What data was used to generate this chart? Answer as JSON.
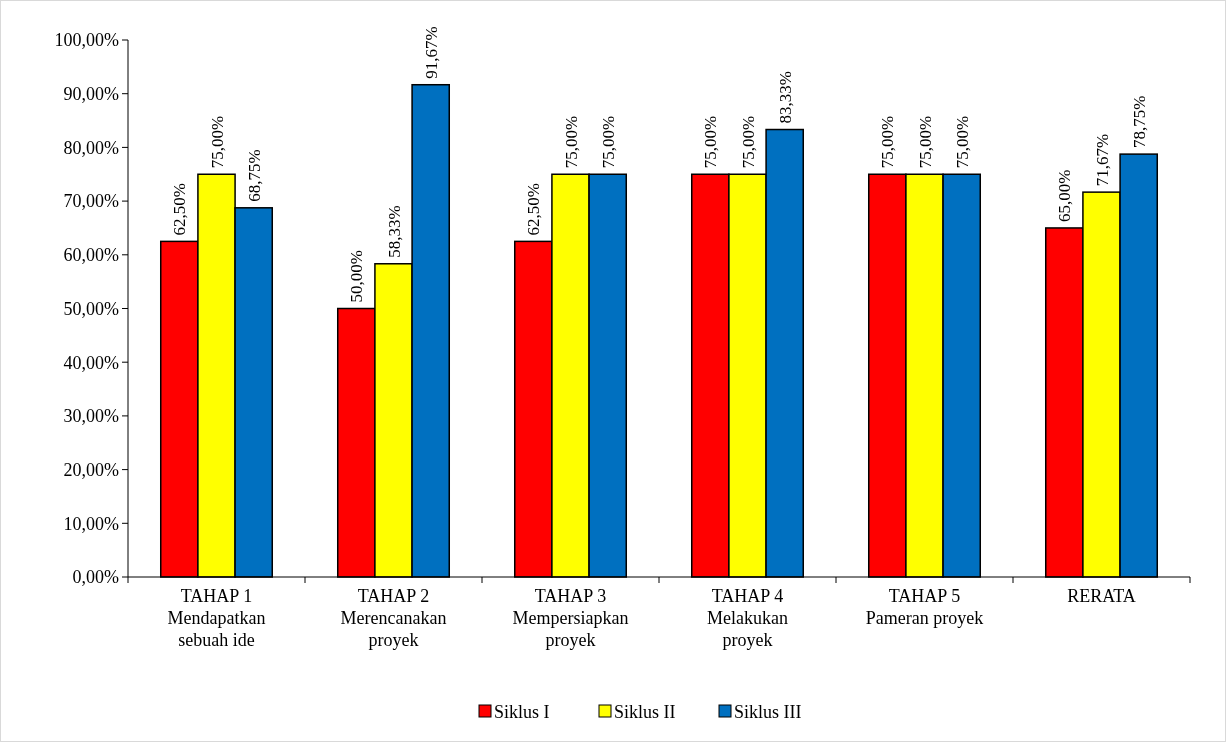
{
  "chart_data": {
    "type": "bar",
    "categories": [
      "TAHAP 1\nMendapatkan\nsebuah ide",
      "TAHAP 2\nMerencanakan\nproyek",
      "TAHAP 3\nMempersiapkan\nproyek",
      "TAHAP 4\nMelakukan\nproyek",
      "TAHAP 5\nPameran proyek",
      "RERATA"
    ],
    "series": [
      {
        "name": "Siklus I",
        "color": "#ff0000",
        "values": [
          62.5,
          50,
          62.5,
          75,
          75,
          65
        ],
        "value_labels": [
          "62,50%",
          "50,00%",
          "62,50%",
          "75,00%",
          "75,00%",
          "65,00%"
        ]
      },
      {
        "name": "Siklus II",
        "color": "#ffff00",
        "values": [
          75,
          58.33,
          75,
          75,
          75,
          71.67
        ],
        "value_labels": [
          "75,00%",
          "58,33%",
          "75,00%",
          "75,00%",
          "75,00%",
          "71,67%"
        ]
      },
      {
        "name": "Siklus III",
        "color": "#0070c0",
        "values": [
          68.75,
          91.67,
          75,
          83.33,
          75,
          78.75
        ],
        "value_labels": [
          "68,75%",
          "91,67%",
          "75,00%",
          "83,33%",
          "75,00%",
          "78,75%"
        ]
      }
    ],
    "ylim": [
      0,
      100
    ],
    "yticks": [
      {
        "value": 0,
        "label": "0,00%"
      },
      {
        "value": 10,
        "label": "10,00%"
      },
      {
        "value": 20,
        "label": "20,00%"
      },
      {
        "value": 30,
        "label": "30,00%"
      },
      {
        "value": 40,
        "label": "40,00%"
      },
      {
        "value": 50,
        "label": "50,00%"
      },
      {
        "value": 60,
        "label": "60,00%"
      },
      {
        "value": 70,
        "label": "70,00%"
      },
      {
        "value": 80,
        "label": "80,00%"
      },
      {
        "value": 90,
        "label": "90,00%"
      },
      {
        "value": 100,
        "label": "100,00%"
      }
    ],
    "legend": "bottom"
  }
}
